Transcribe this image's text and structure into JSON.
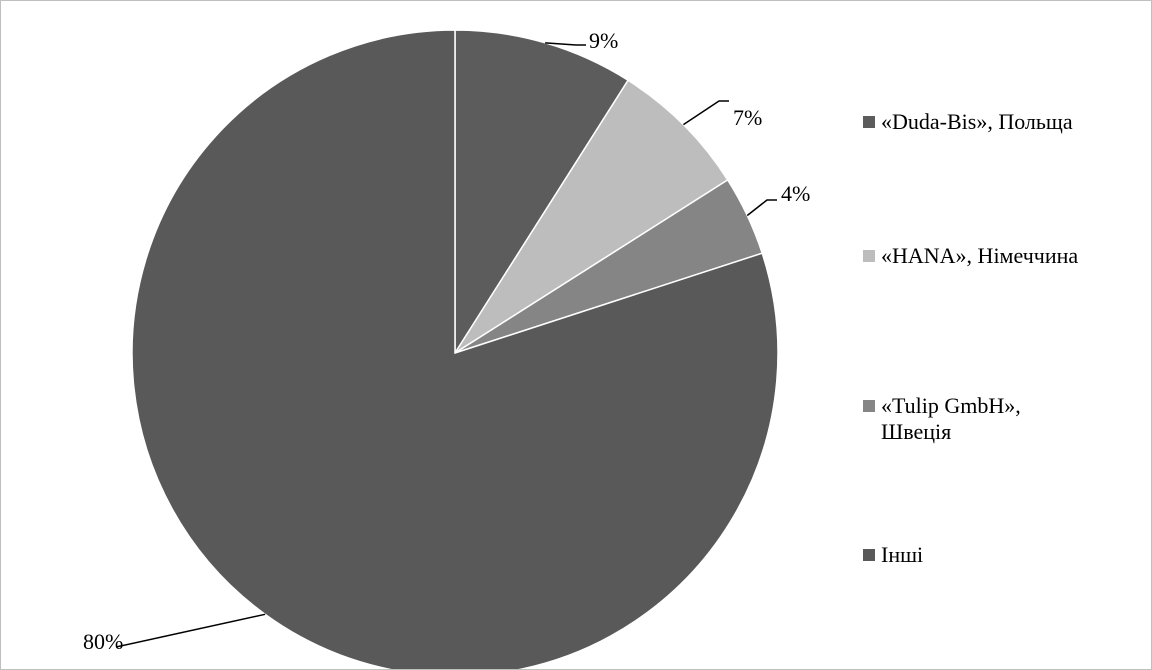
{
  "chart_data": {
    "type": "pie",
    "title": "",
    "categories": [
      "«Duda-Bis», Польща",
      "«HANA», Німеччина",
      "«Tulip GmbH», Швеція",
      "Інші"
    ],
    "values": [
      9,
      7,
      4,
      80
    ],
    "data_labels": [
      "9%",
      "7%",
      "4%",
      "80%"
    ],
    "colors": [
      "#5c5c5c",
      "#bdbdbd",
      "#858585",
      "#595959"
    ],
    "legend_position": "right",
    "legend_entries": [
      {
        "line1": "«Duda-Bis», Польща",
        "line2": ""
      },
      {
        "line1": "«HANA», Німеччина",
        "line2": ""
      },
      {
        "line1": "«Tulip GmbH»,",
        "line2": "Швеція"
      },
      {
        "line1": "Інші",
        "line2": ""
      }
    ]
  }
}
